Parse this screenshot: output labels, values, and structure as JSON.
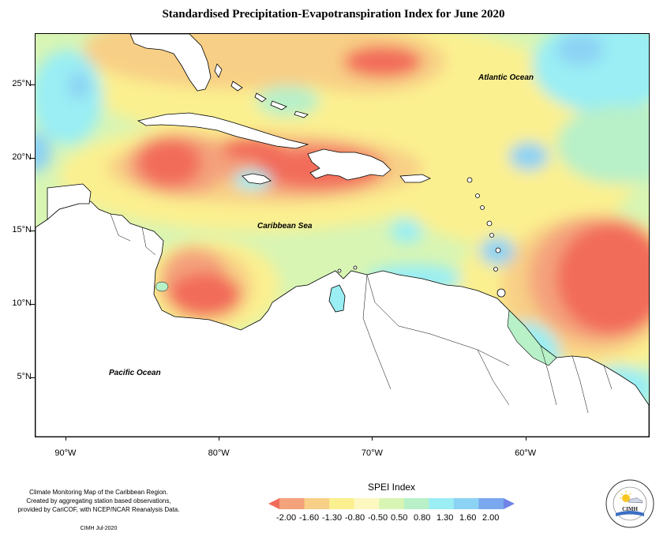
{
  "title": "Standardised Precipitation-Evapotranspiration Index for June 2020",
  "map": {
    "lat_ticks": [
      {
        "label": "25°N",
        "lat": 25
      },
      {
        "label": "20°N",
        "lat": 20
      },
      {
        "label": "15°N",
        "lat": 15
      },
      {
        "label": "10°N",
        "lat": 10
      },
      {
        "label": "5°N",
        "lat": 5
      }
    ],
    "lon_ticks": [
      {
        "label": "90°W",
        "lon": -90
      },
      {
        "label": "80°W",
        "lon": -80
      },
      {
        "label": "70°W",
        "lon": -70
      },
      {
        "label": "60°W",
        "lon": -60
      }
    ],
    "ocean_labels": {
      "atlantic": "Atlantic Ocean",
      "caribbean": "Caribbean Sea",
      "pacific": "Pacific Ocean"
    }
  },
  "legend": {
    "title": "SPEI Index",
    "labels": [
      "-2.00",
      "-1.60",
      "-1.30",
      "-0.80",
      "-0.50",
      "0.50",
      "0.80",
      "1.30",
      "1.60",
      "2.00"
    ],
    "colors": [
      "#f26c5a",
      "#f4a27c",
      "#f8cf86",
      "#fbf090",
      "#fdf7c0",
      "#d8f5b4",
      "#b8f0c8",
      "#9aeef4",
      "#8cd2f4",
      "#7aa8ee",
      "#6f84e6"
    ]
  },
  "credit": {
    "line1": "Climate Monitoring Map of the Caribbean Region.",
    "line2": "Created by aggregating station based observations,",
    "line3": "provided by CariCOF, with NCEP/NCAR Reanalysis Data.",
    "date": "CIMH Jul-2020"
  },
  "logo": {
    "text": "CIMH",
    "icon": "sun-cloud-icon"
  }
}
